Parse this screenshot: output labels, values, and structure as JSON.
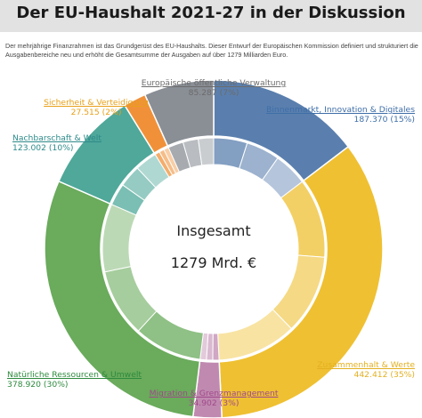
{
  "title": "Der EU-Haushalt 2021-27 in der Diskussion",
  "intro": "Der mehrjährige Finanzrahmen ist das Grundgerüst des EU-Haushalts. Dieser Entwurf der Europäischen Kommission definiert und strukturiert die Ausgabenbereiche neu und erhöht die Gesamtsumme der Ausgaben auf über 1279 Milliarden Euro.",
  "center": {
    "label": "Insgesamt",
    "value": "1279 Mrd. €"
  },
  "labels": [
    {
      "name": "Europäische öffentliche Verwaltung",
      "value": "85.287 (7%)",
      "color": "#6b6b6b"
    },
    {
      "name": "Sicherheit & Verteidigung",
      "value": "27.515 (2%)",
      "color": "#e8a019"
    },
    {
      "name": "Binnenmarkt, Innovation & Digitales",
      "value": "187.370 (15%)",
      "color": "#3e6ea8"
    },
    {
      "name": "Nachbarschaft & Welt",
      "value": "123.002 (10%)",
      "color": "#2e8a8a"
    },
    {
      "name": "Zusammenhalt & Werte",
      "value": "442.412 (35%)",
      "color": "#e3b020"
    },
    {
      "name": "Natürliche Ressourcen & Umwelt",
      "value": "378.920 (30%)",
      "color": "#2e8a3e"
    },
    {
      "name": "Migration & Grenzmanagement",
      "value": "34.902 (3%)",
      "color": "#a04a8a"
    }
  ],
  "chart_data": {
    "type": "pie",
    "title": "Der EU-Haushalt 2021-27 in der Diskussion",
    "center_text": [
      "Insgesamt",
      "1279 Mrd. €"
    ],
    "series": [
      {
        "categories": [
          "Binnenmarkt, Innovation & Digitales",
          "Zusammenhalt & Werte",
          "Migration & Grenzmanagement",
          "Natürliche Ressourcen & Umwelt",
          "Nachbarschaft & Welt",
          "Sicherheit & Verteidigung",
          "Europäische öffentliche Verwaltung"
        ],
        "values": [
          187.37,
          442.412,
          34.902,
          378.92,
          123.002,
          27.515,
          85.287
        ],
        "percent": [
          15,
          35,
          3,
          30,
          10,
          2,
          7
        ],
        "colors": [
          "#5a7fae",
          "#efc032",
          "#c08ab0",
          "#6aab5c",
          "#4fa89a",
          "#f0913a",
          "#8a8f96"
        ]
      }
    ]
  }
}
